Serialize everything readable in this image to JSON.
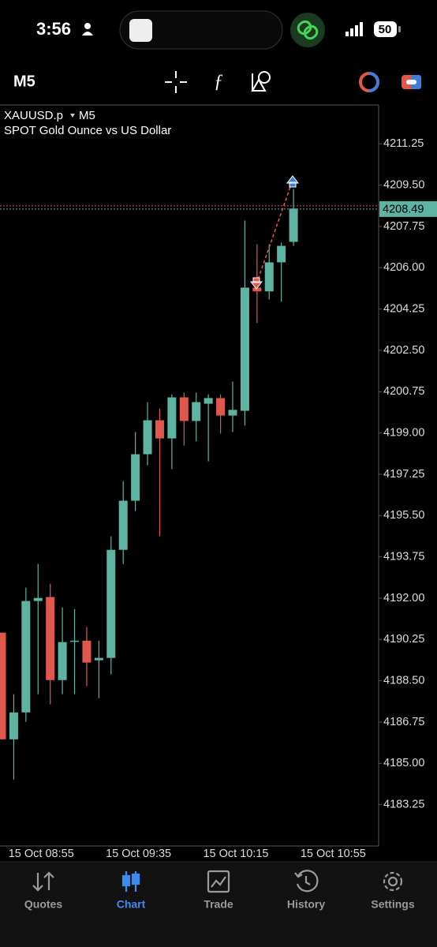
{
  "status_bar": {
    "time": "3:56",
    "battery": "50"
  },
  "toolbar": {
    "timeframe": "M5"
  },
  "chart_data": {
    "type": "candlestick",
    "symbol": "XAUUSD.p",
    "timeframe": "M5",
    "description": "SPOT Gold Ounce vs US Dollar",
    "categories": [
      null,
      null,
      null,
      "15 Oct 08:55",
      null,
      null,
      null,
      null,
      null,
      null,
      null,
      "15 Oct 09:35",
      null,
      null,
      null,
      null,
      null,
      null,
      null,
      "15 Oct 10:15",
      null,
      null,
      null,
      null,
      null,
      null,
      null,
      "15 Oct 10:55"
    ],
    "open": [
      4190.54,
      4186.02,
      4187.16,
      4191.88,
      4192.05,
      4188.53,
      4190.2,
      4190.2,
      4189.37,
      4189.47,
      4194.05,
      4196.13,
      4198.1,
      4199.54,
      4198.77,
      4200.51,
      4199.51,
      4200.24,
      4200.48,
      4199.74,
      4199.94,
      4205.16,
      4205.0,
      4206.23,
      4207.1,
      null,
      null,
      null
    ],
    "high": [
      4190.54,
      4187.93,
      4192.45,
      4193.45,
      4192.61,
      4191.61,
      4191.54,
      4190.78,
      4190.2,
      4194.62,
      4196.96,
      4199.04,
      4200.31,
      4200.04,
      4200.64,
      4200.71,
      4200.71,
      4200.64,
      4200.64,
      4201.18,
      4208.0,
      4207.0,
      4207.0,
      4207.07,
      4209.34,
      null,
      null,
      null
    ],
    "low": [
      4186.02,
      4184.32,
      4186.76,
      4187.93,
      4187.5,
      4187.93,
      4187.93,
      4188.27,
      4187.76,
      4188.77,
      4193.45,
      4195.69,
      4197.63,
      4194.62,
      4197.47,
      4198.47,
      4198.64,
      4197.8,
      4198.97,
      4199.04,
      4199.31,
      4203.66,
      4204.66,
      4204.56,
      4206.93,
      null,
      null,
      null
    ],
    "close": [
      4186.02,
      4187.16,
      4191.88,
      4192.01,
      4188.53,
      4190.14,
      4190.2,
      4189.27,
      4189.47,
      4194.05,
      4196.13,
      4198.1,
      4199.54,
      4198.77,
      4200.51,
      4199.51,
      4200.31,
      4200.48,
      4199.74,
      4199.98,
      4205.16,
      4205.0,
      4206.23,
      4206.93,
      4208.51,
      null,
      null,
      null
    ],
    "up_color": "#5fb3a3",
    "down_color": "#e0574d",
    "current_price": 4208.49,
    "ylim": [
      4181.5,
      4212.9
    ],
    "yticks": [
      4211.25,
      {
        "value": 4209.5,
        "label": "4209.50"
      },
      4207.75,
      {
        "value": 4206,
        "label": "4206.00"
      },
      4204.25,
      {
        "value": 4202.5,
        "label": "4202.50"
      },
      4200.75,
      {
        "value": 4199,
        "label": "4199.00"
      },
      4197.25,
      {
        "value": 4195.5,
        "label": "4195.50"
      },
      4193.75,
      {
        "value": 4192,
        "label": "4192.00"
      },
      4190.25,
      {
        "value": 4188.5,
        "label": "4188.50"
      },
      4186.75,
      {
        "value": 4185,
        "label": "4185.00"
      },
      4183.25
    ]
  },
  "tabs": [
    {
      "label": "Quotes"
    },
    {
      "label": "Chart"
    },
    {
      "label": "Trade"
    },
    {
      "label": "History"
    },
    {
      "label": "Settings"
    }
  ],
  "active_tab": 1
}
